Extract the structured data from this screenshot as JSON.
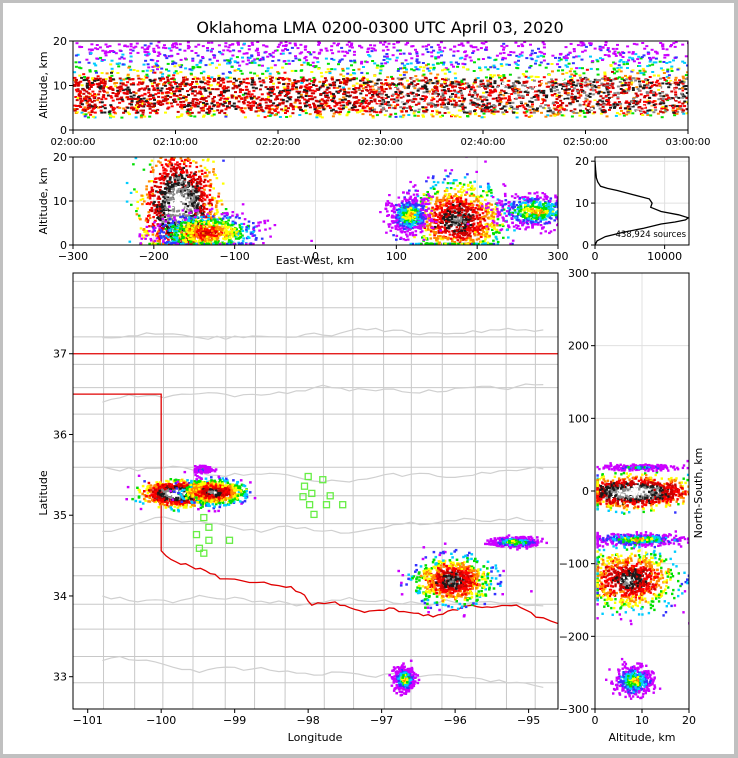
{
  "chart_data": [
    {
      "type": "heatmap",
      "panel": "altitude-time",
      "title": "Oklahoma LMA 0200-0300 UTC April 03, 2020",
      "ylabel": "Altitude, km",
      "xlabel": "",
      "x_ticks": [
        "02:00:00",
        "02:10:00",
        "02:20:00",
        "02:30:00",
        "02:40:00",
        "02:50:00",
        "03:00:00"
      ],
      "y_ticks": [
        "0",
        "10",
        "20"
      ],
      "ylim": [
        0,
        20
      ],
      "xlim": [
        "02:00:00",
        "03:00:00"
      ],
      "band": {
        "bottom_km": 3,
        "top_km": 18,
        "core_bottom_km": 4,
        "core_top_km": 12
      }
    },
    {
      "type": "heatmap",
      "panel": "altitude-east-west",
      "xlabel": "East-West, km",
      "ylabel": "Altitude, km",
      "x_ticks": [
        "−300",
        "−200",
        "−100",
        "0",
        "100",
        "200",
        "300"
      ],
      "y_ticks": [
        "0",
        "10",
        "20"
      ],
      "xlim": [
        -300,
        300
      ],
      "ylim": [
        0,
        20
      ],
      "grid": true,
      "clusters": [
        {
          "x": -170,
          "alt": 9,
          "density": 5,
          "sx": 22,
          "sa": 6
        },
        {
          "x": -135,
          "alt": 3,
          "density": 3,
          "sx": 30,
          "sa": 2
        },
        {
          "x": 175,
          "alt": 6,
          "density": 4,
          "sx": 28,
          "sa": 4
        },
        {
          "x": 115,
          "alt": 7,
          "density": 2,
          "sx": 12,
          "sa": 2
        },
        {
          "x": 270,
          "alt": 8,
          "density": 2,
          "sx": 25,
          "sa": 2
        }
      ]
    },
    {
      "type": "line",
      "panel": "altitude-histogram",
      "x_ticks": [
        "0",
        "10000"
      ],
      "y_ticks": [
        "0",
        "10",
        "20"
      ],
      "xlim": [
        0,
        13500
      ],
      "ylim": [
        0,
        21
      ],
      "annotation": "438,924 sources",
      "x": [
        0,
        300,
        1500,
        4000,
        7000,
        9500,
        11500,
        13000,
        13400,
        12000,
        9500,
        8000,
        8200,
        7800,
        5500,
        3200,
        1800,
        800,
        400,
        200,
        80,
        0
      ],
      "y": [
        0,
        1,
        2,
        3,
        4,
        5,
        5.5,
        6,
        6.5,
        7.2,
        8,
        9,
        10,
        11,
        12,
        13,
        13.5,
        14,
        15,
        16,
        18,
        20
      ]
    },
    {
      "type": "scatter",
      "panel": "plan-view",
      "xlabel": "Longitude",
      "ylabel": "Latitude",
      "x_ticks": [
        "−101",
        "−100",
        "−99",
        "−98",
        "−97",
        "−96",
        "−95"
      ],
      "y_ticks": [
        "33",
        "34",
        "35",
        "36",
        "37"
      ],
      "xlim": [
        -101.2,
        -94.6
      ],
      "ylim": [
        32.6,
        38.0
      ],
      "stations": [
        {
          "lon": -98.0,
          "lat": 35.48
        },
        {
          "lon": -97.8,
          "lat": 35.44
        },
        {
          "lon": -98.05,
          "lat": 35.36
        },
        {
          "lon": -97.95,
          "lat": 35.27
        },
        {
          "lon": -98.07,
          "lat": 35.23
        },
        {
          "lon": -97.7,
          "lat": 35.24
        },
        {
          "lon": -97.75,
          "lat": 35.13
        },
        {
          "lon": -97.98,
          "lat": 35.13
        },
        {
          "lon": -97.53,
          "lat": 35.13
        },
        {
          "lon": -97.92,
          "lat": 35.01
        },
        {
          "lon": -99.42,
          "lat": 34.97
        },
        {
          "lon": -99.35,
          "lat": 34.85
        },
        {
          "lon": -99.52,
          "lat": 34.76
        },
        {
          "lon": -99.35,
          "lat": 34.69
        },
        {
          "lon": -99.07,
          "lat": 34.69
        },
        {
          "lon": -99.48,
          "lat": 34.59
        },
        {
          "lon": -99.42,
          "lat": 34.53
        }
      ],
      "clusters": [
        {
          "lon": -99.8,
          "lat": 35.28,
          "density": 5,
          "sx": 0.22,
          "sy": 0.07
        },
        {
          "lon": -99.3,
          "lat": 35.3,
          "density": 4,
          "sx": 0.2,
          "sy": 0.07
        },
        {
          "lon": -99.45,
          "lat": 35.58,
          "density": 1,
          "sx": 0.05,
          "sy": 0.02
        },
        {
          "lon": -96.05,
          "lat": 34.2,
          "density": 4,
          "sx": 0.25,
          "sy": 0.14
        },
        {
          "lon": -95.2,
          "lat": 34.68,
          "density": 2,
          "sx": 0.15,
          "sy": 0.03
        },
        {
          "lon": -96.7,
          "lat": 32.98,
          "density": 2,
          "sx": 0.07,
          "sy": 0.07
        }
      ]
    },
    {
      "type": "heatmap",
      "panel": "north-south-altitude",
      "xlabel": "Altitude, km",
      "ylabel": "North-South, km",
      "x_ticks": [
        "0",
        "10",
        "20"
      ],
      "y_ticks": [
        "−300",
        "−200",
        "−100",
        "0",
        "100",
        "200",
        "300"
      ],
      "xlim": [
        0,
        20
      ],
      "ylim": [
        -300,
        300
      ],
      "grid": true,
      "clusters": [
        {
          "alt": 8,
          "y": 0,
          "density": 5,
          "sa": 6,
          "sy": 10
        },
        {
          "alt": 9,
          "y": 34,
          "density": 1,
          "sa": 4,
          "sy": 2
        },
        {
          "alt": 9,
          "y": -65,
          "density": 2,
          "sa": 5,
          "sy": 4
        },
        {
          "alt": 7,
          "y": -120,
          "density": 4,
          "sa": 5,
          "sy": 20
        },
        {
          "alt": 8,
          "y": -260,
          "density": 2,
          "sa": 2,
          "sy": 10
        }
      ]
    }
  ]
}
